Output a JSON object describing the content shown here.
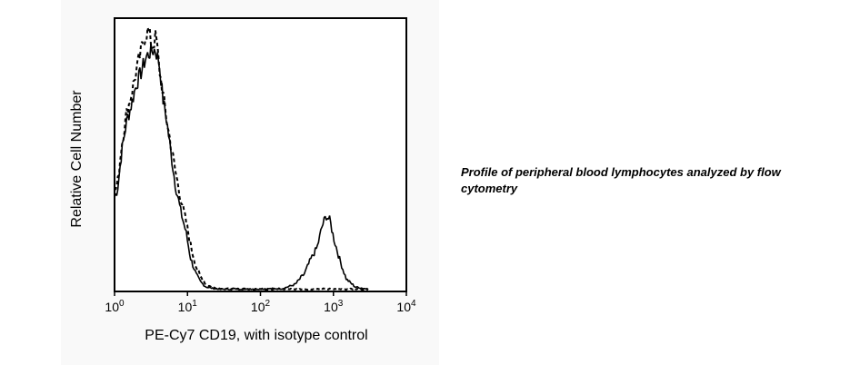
{
  "caption": "Profile of peripheral blood lymphocytes analyzed by flow cytometry",
  "chart_data": {
    "type": "line",
    "title": "",
    "xlabel": "PE-Cy7 CD19, with isotype control",
    "ylabel": "Relative Cell Number",
    "x_scale": "log",
    "xlim": [
      1,
      10000
    ],
    "ylim": [
      0,
      1
    ],
    "x_ticks": [
      {
        "value": 1,
        "base": "10",
        "exp": "0"
      },
      {
        "value": 10,
        "base": "10",
        "exp": "1"
      },
      {
        "value": 100,
        "base": "10",
        "exp": "2"
      },
      {
        "value": 1000,
        "base": "10",
        "exp": "3"
      },
      {
        "value": 10000,
        "base": "10",
        "exp": "4"
      }
    ],
    "series": [
      {
        "style": "solid",
        "color": "#000000",
        "x": [
          1,
          1.1,
          1.25,
          1.45,
          1.7,
          2.0,
          2.3,
          2.7,
          3.1,
          3.6,
          4.1,
          4.6,
          5.2,
          5.9,
          6.8,
          8.0,
          9.5,
          11,
          13,
          15,
          18,
          22,
          30,
          50,
          100,
          200,
          300,
          400,
          500,
          600,
          700,
          800,
          900,
          1000,
          1200,
          1500,
          2000,
          3000
        ],
        "y": [
          0.35,
          0.38,
          0.52,
          0.63,
          0.7,
          0.78,
          0.82,
          0.88,
          0.9,
          0.91,
          0.86,
          0.72,
          0.64,
          0.52,
          0.4,
          0.3,
          0.22,
          0.12,
          0.06,
          0.03,
          0.01,
          0.005,
          0.002,
          0.003,
          0.003,
          0.004,
          0.02,
          0.06,
          0.12,
          0.16,
          0.24,
          0.28,
          0.26,
          0.2,
          0.12,
          0.04,
          0.01,
          0.002
        ]
      },
      {
        "style": "dashed",
        "color": "#000000",
        "x": [
          1,
          1.1,
          1.25,
          1.45,
          1.7,
          2.0,
          2.3,
          2.6,
          2.9,
          3.3,
          3.7,
          4.1,
          4.6,
          5.2,
          5.9,
          6.8,
          8.0,
          9.5,
          11,
          13,
          15,
          18,
          22,
          30,
          50,
          100,
          200,
          400,
          1000,
          3000
        ],
        "y": [
          0.37,
          0.4,
          0.55,
          0.66,
          0.74,
          0.83,
          0.9,
          0.96,
          0.98,
          0.92,
          0.96,
          0.84,
          0.74,
          0.64,
          0.55,
          0.45,
          0.35,
          0.26,
          0.17,
          0.09,
          0.05,
          0.02,
          0.008,
          0.003,
          0.002,
          0.002,
          0.002,
          0.002,
          0.002,
          0.002
        ]
      }
    ]
  }
}
